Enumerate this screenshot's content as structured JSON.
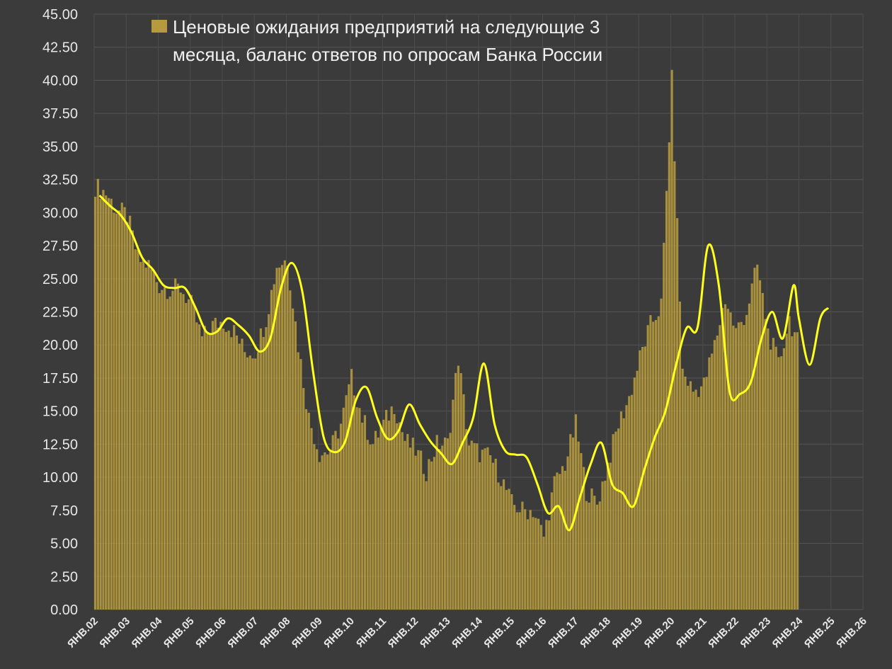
{
  "chart_data": {
    "type": "bar",
    "title": "",
    "xlabel": "",
    "ylabel": "",
    "ylim": [
      0,
      45
    ],
    "y_ticks": [
      "0.00",
      "2.50",
      "5.00",
      "7.50",
      "10.00",
      "12.50",
      "15.00",
      "17.50",
      "20.00",
      "22.50",
      "25.00",
      "27.50",
      "30.00",
      "32.50",
      "35.00",
      "37.50",
      "40.00",
      "42.50",
      "45.00"
    ],
    "x_ticks": [
      "ЯНВ.02",
      "ЯНВ.03",
      "ЯНВ.04",
      "ЯНВ.05",
      "ЯНВ.06",
      "ЯНВ.07",
      "ЯНВ.08",
      "ЯНВ.09",
      "ЯНВ.10",
      "ЯНВ.11",
      "ЯНВ.12",
      "ЯНВ.13",
      "ЯНВ.14",
      "ЯНВ.15",
      "ЯНВ.16",
      "ЯНВ.17",
      "ЯНВ.18",
      "ЯНВ.19",
      "ЯНВ.20",
      "ЯНВ.21",
      "ЯНВ.22",
      "ЯНВ.23",
      "ЯНВ.24",
      "ЯНВ.25",
      "ЯНВ.26"
    ],
    "grid": true,
    "legend_position": "top-left",
    "series": [
      {
        "name": "Ценовые ожидания предприятий на следующие 3 месяца, баланс ответов по опросам Банка России",
        "type": "bar",
        "color": "#b59a3e",
        "anchors": [
          [
            "2002-01",
            32.0
          ],
          [
            "2002-05",
            31.5
          ],
          [
            "2002-09",
            30.2
          ],
          [
            "2003-01",
            29.8
          ],
          [
            "2003-05",
            26.5
          ],
          [
            "2003-09",
            26.0
          ],
          [
            "2004-01",
            24.5
          ],
          [
            "2004-05",
            24.2
          ],
          [
            "2004-09",
            24.3
          ],
          [
            "2005-01",
            23.0
          ],
          [
            "2005-05",
            20.5
          ],
          [
            "2005-09",
            21.5
          ],
          [
            "2006-01",
            21.8
          ],
          [
            "2006-05",
            21.0
          ],
          [
            "2006-09",
            19.5
          ],
          [
            "2007-01",
            19.5
          ],
          [
            "2007-05",
            22.0
          ],
          [
            "2007-09",
            26.0
          ],
          [
            "2008-01",
            26.5
          ],
          [
            "2008-05",
            20.0
          ],
          [
            "2008-09",
            14.5
          ],
          [
            "2009-01",
            11.8
          ],
          [
            "2009-05",
            12.0
          ],
          [
            "2009-09",
            14.0
          ],
          [
            "2010-01",
            17.5
          ],
          [
            "2010-05",
            14.5
          ],
          [
            "2010-09",
            12.5
          ],
          [
            "2011-01",
            14.0
          ],
          [
            "2011-05",
            15.5
          ],
          [
            "2011-09",
            12.8
          ],
          [
            "2012-01",
            12.0
          ],
          [
            "2012-05",
            10.5
          ],
          [
            "2012-09",
            12.5
          ],
          [
            "2013-01",
            12.5
          ],
          [
            "2013-05",
            19.0
          ],
          [
            "2013-09",
            12.5
          ],
          [
            "2014-01",
            11.8
          ],
          [
            "2014-05",
            11.5
          ],
          [
            "2014-09",
            10.0
          ],
          [
            "2015-01",
            8.0
          ],
          [
            "2015-05",
            7.5
          ],
          [
            "2015-09",
            7.5
          ],
          [
            "2016-01",
            5.5
          ],
          [
            "2016-05",
            9.5
          ],
          [
            "2016-09",
            11.0
          ],
          [
            "2017-01",
            14.0
          ],
          [
            "2017-05",
            9.0
          ],
          [
            "2017-09",
            8.0
          ],
          [
            "2018-01",
            11.0
          ],
          [
            "2018-05",
            14.0
          ],
          [
            "2018-09",
            16.0
          ],
          [
            "2019-01",
            19.0
          ],
          [
            "2019-05",
            21.5
          ],
          [
            "2019-09",
            23.0
          ],
          [
            "2020-01",
            40.0
          ],
          [
            "2020-05",
            18.0
          ],
          [
            "2020-09",
            16.5
          ],
          [
            "2021-01",
            17.0
          ],
          [
            "2021-05",
            20.0
          ],
          [
            "2021-09",
            23.5
          ],
          [
            "2022-01",
            21.0
          ],
          [
            "2022-05",
            22.5
          ],
          [
            "2022-09",
            26.0
          ],
          [
            "2023-01",
            21.0
          ],
          [
            "2023-05",
            18.5
          ],
          [
            "2023-09",
            22.0
          ],
          [
            "2023-12",
            20.2
          ]
        ]
      },
      {
        "name": "",
        "type": "line",
        "color": "#ffff1e",
        "points": [
          [
            "2002-03",
            31.3
          ],
          [
            "2002-07",
            30.5
          ],
          [
            "2002-11",
            29.8
          ],
          [
            "2003-03",
            28.5
          ],
          [
            "2003-07",
            26.6
          ],
          [
            "2003-11",
            25.7
          ],
          [
            "2004-03",
            24.5
          ],
          [
            "2004-07",
            24.3
          ],
          [
            "2004-11",
            24.3
          ],
          [
            "2005-03",
            22.8
          ],
          [
            "2005-07",
            21.0
          ],
          [
            "2005-11",
            21.0
          ],
          [
            "2006-03",
            22.0
          ],
          [
            "2006-07",
            21.5
          ],
          [
            "2006-11",
            20.7
          ],
          [
            "2007-03",
            19.5
          ],
          [
            "2007-07",
            20.5
          ],
          [
            "2007-11",
            24.3
          ],
          [
            "2008-03",
            26.2
          ],
          [
            "2008-07",
            24.0
          ],
          [
            "2008-11",
            18.0
          ],
          [
            "2009-03",
            13.0
          ],
          [
            "2009-07",
            11.9
          ],
          [
            "2009-11",
            12.7
          ],
          [
            "2010-03",
            15.8
          ],
          [
            "2010-07",
            16.8
          ],
          [
            "2010-11",
            14.5
          ],
          [
            "2011-03",
            12.9
          ],
          [
            "2011-07",
            13.5
          ],
          [
            "2011-11",
            15.5
          ],
          [
            "2012-03",
            14.0
          ],
          [
            "2012-07",
            12.7
          ],
          [
            "2012-11",
            11.8
          ],
          [
            "2013-03",
            11.0
          ],
          [
            "2013-07",
            12.6
          ],
          [
            "2013-11",
            14.5
          ],
          [
            "2014-03",
            18.6
          ],
          [
            "2014-07",
            14.0
          ],
          [
            "2014-11",
            12.0
          ],
          [
            "2015-03",
            11.7
          ],
          [
            "2015-07",
            11.5
          ],
          [
            "2015-11",
            9.5
          ],
          [
            "2016-03",
            7.3
          ],
          [
            "2016-07",
            7.8
          ],
          [
            "2016-11",
            6.0
          ],
          [
            "2017-03",
            8.5
          ],
          [
            "2017-07",
            11.0
          ],
          [
            "2017-11",
            12.6
          ],
          [
            "2018-03",
            9.5
          ],
          [
            "2018-07",
            8.8
          ],
          [
            "2018-11",
            7.8
          ],
          [
            "2019-03",
            10.5
          ],
          [
            "2019-07",
            13.0
          ],
          [
            "2019-11",
            15.0
          ],
          [
            "2020-03",
            18.5
          ],
          [
            "2020-07",
            21.3
          ],
          [
            "2020-11",
            21.3
          ],
          [
            "2021-03",
            27.5
          ],
          [
            "2021-07",
            24.5
          ],
          [
            "2021-11",
            16.5
          ],
          [
            "2022-03",
            16.3
          ],
          [
            "2022-07",
            17.2
          ],
          [
            "2022-11",
            20.5
          ],
          [
            "2023-03",
            22.5
          ],
          [
            "2023-07",
            20.5
          ],
          [
            "2023-11",
            24.5
          ],
          [
            "2024-01",
            22.0
          ],
          [
            "2024-05",
            18.5
          ],
          [
            "2024-09",
            22.0
          ],
          [
            "2024-12",
            22.8
          ]
        ]
      }
    ]
  }
}
